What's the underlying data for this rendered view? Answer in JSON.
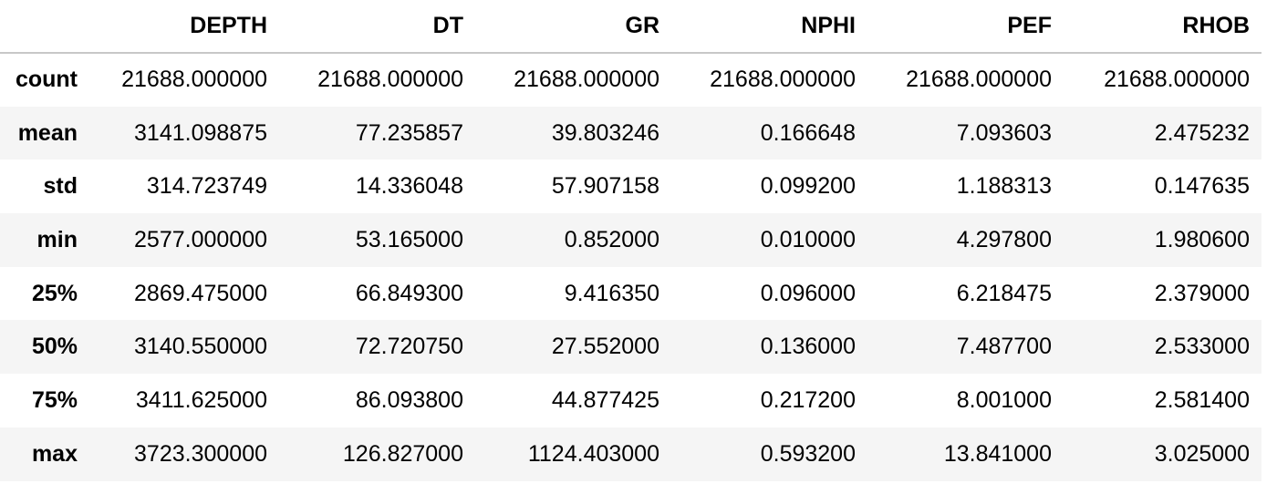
{
  "table": {
    "index_header": "",
    "columns": [
      "DEPTH",
      "DT",
      "GR",
      "NPHI",
      "PEF",
      "RHOB"
    ],
    "rows": [
      {
        "label": "count",
        "values": [
          "21688.000000",
          "21688.000000",
          "21688.000000",
          "21688.000000",
          "21688.000000",
          "21688.000000"
        ]
      },
      {
        "label": "mean",
        "values": [
          "3141.098875",
          "77.235857",
          "39.803246",
          "0.166648",
          "7.093603",
          "2.475232"
        ]
      },
      {
        "label": "std",
        "values": [
          "314.723749",
          "14.336048",
          "57.907158",
          "0.099200",
          "1.188313",
          "0.147635"
        ]
      },
      {
        "label": "min",
        "values": [
          "2577.000000",
          "53.165000",
          "0.852000",
          "0.010000",
          "4.297800",
          "1.980600"
        ]
      },
      {
        "label": "25%",
        "values": [
          "2869.475000",
          "66.849300",
          "9.416350",
          "0.096000",
          "6.218475",
          "2.379000"
        ]
      },
      {
        "label": "50%",
        "values": [
          "3140.550000",
          "72.720750",
          "27.552000",
          "0.136000",
          "7.487700",
          "2.533000"
        ]
      },
      {
        "label": "75%",
        "values": [
          "3411.625000",
          "86.093800",
          "44.877425",
          "0.217200",
          "8.001000",
          "2.581400"
        ]
      },
      {
        "label": "max",
        "values": [
          "3723.300000",
          "126.827000",
          "1124.403000",
          "0.593200",
          "13.841000",
          "3.025000"
        ]
      }
    ]
  }
}
